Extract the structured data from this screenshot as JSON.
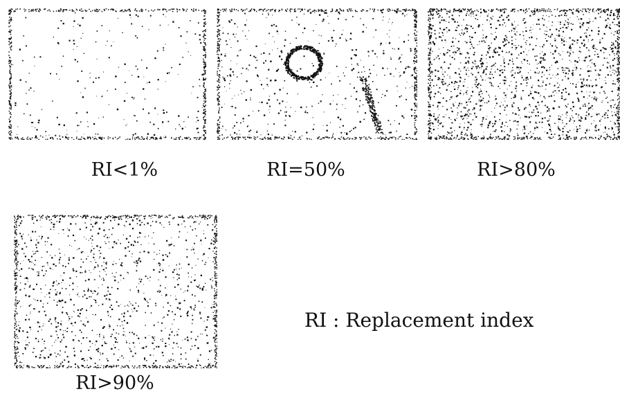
{
  "panels": [
    {
      "caption": "RI<1%"
    },
    {
      "caption": "RI=50%"
    },
    {
      "caption": "RI>80%"
    },
    {
      "caption": "RI>90%"
    }
  ],
  "legend": "RI : Replacement index"
}
